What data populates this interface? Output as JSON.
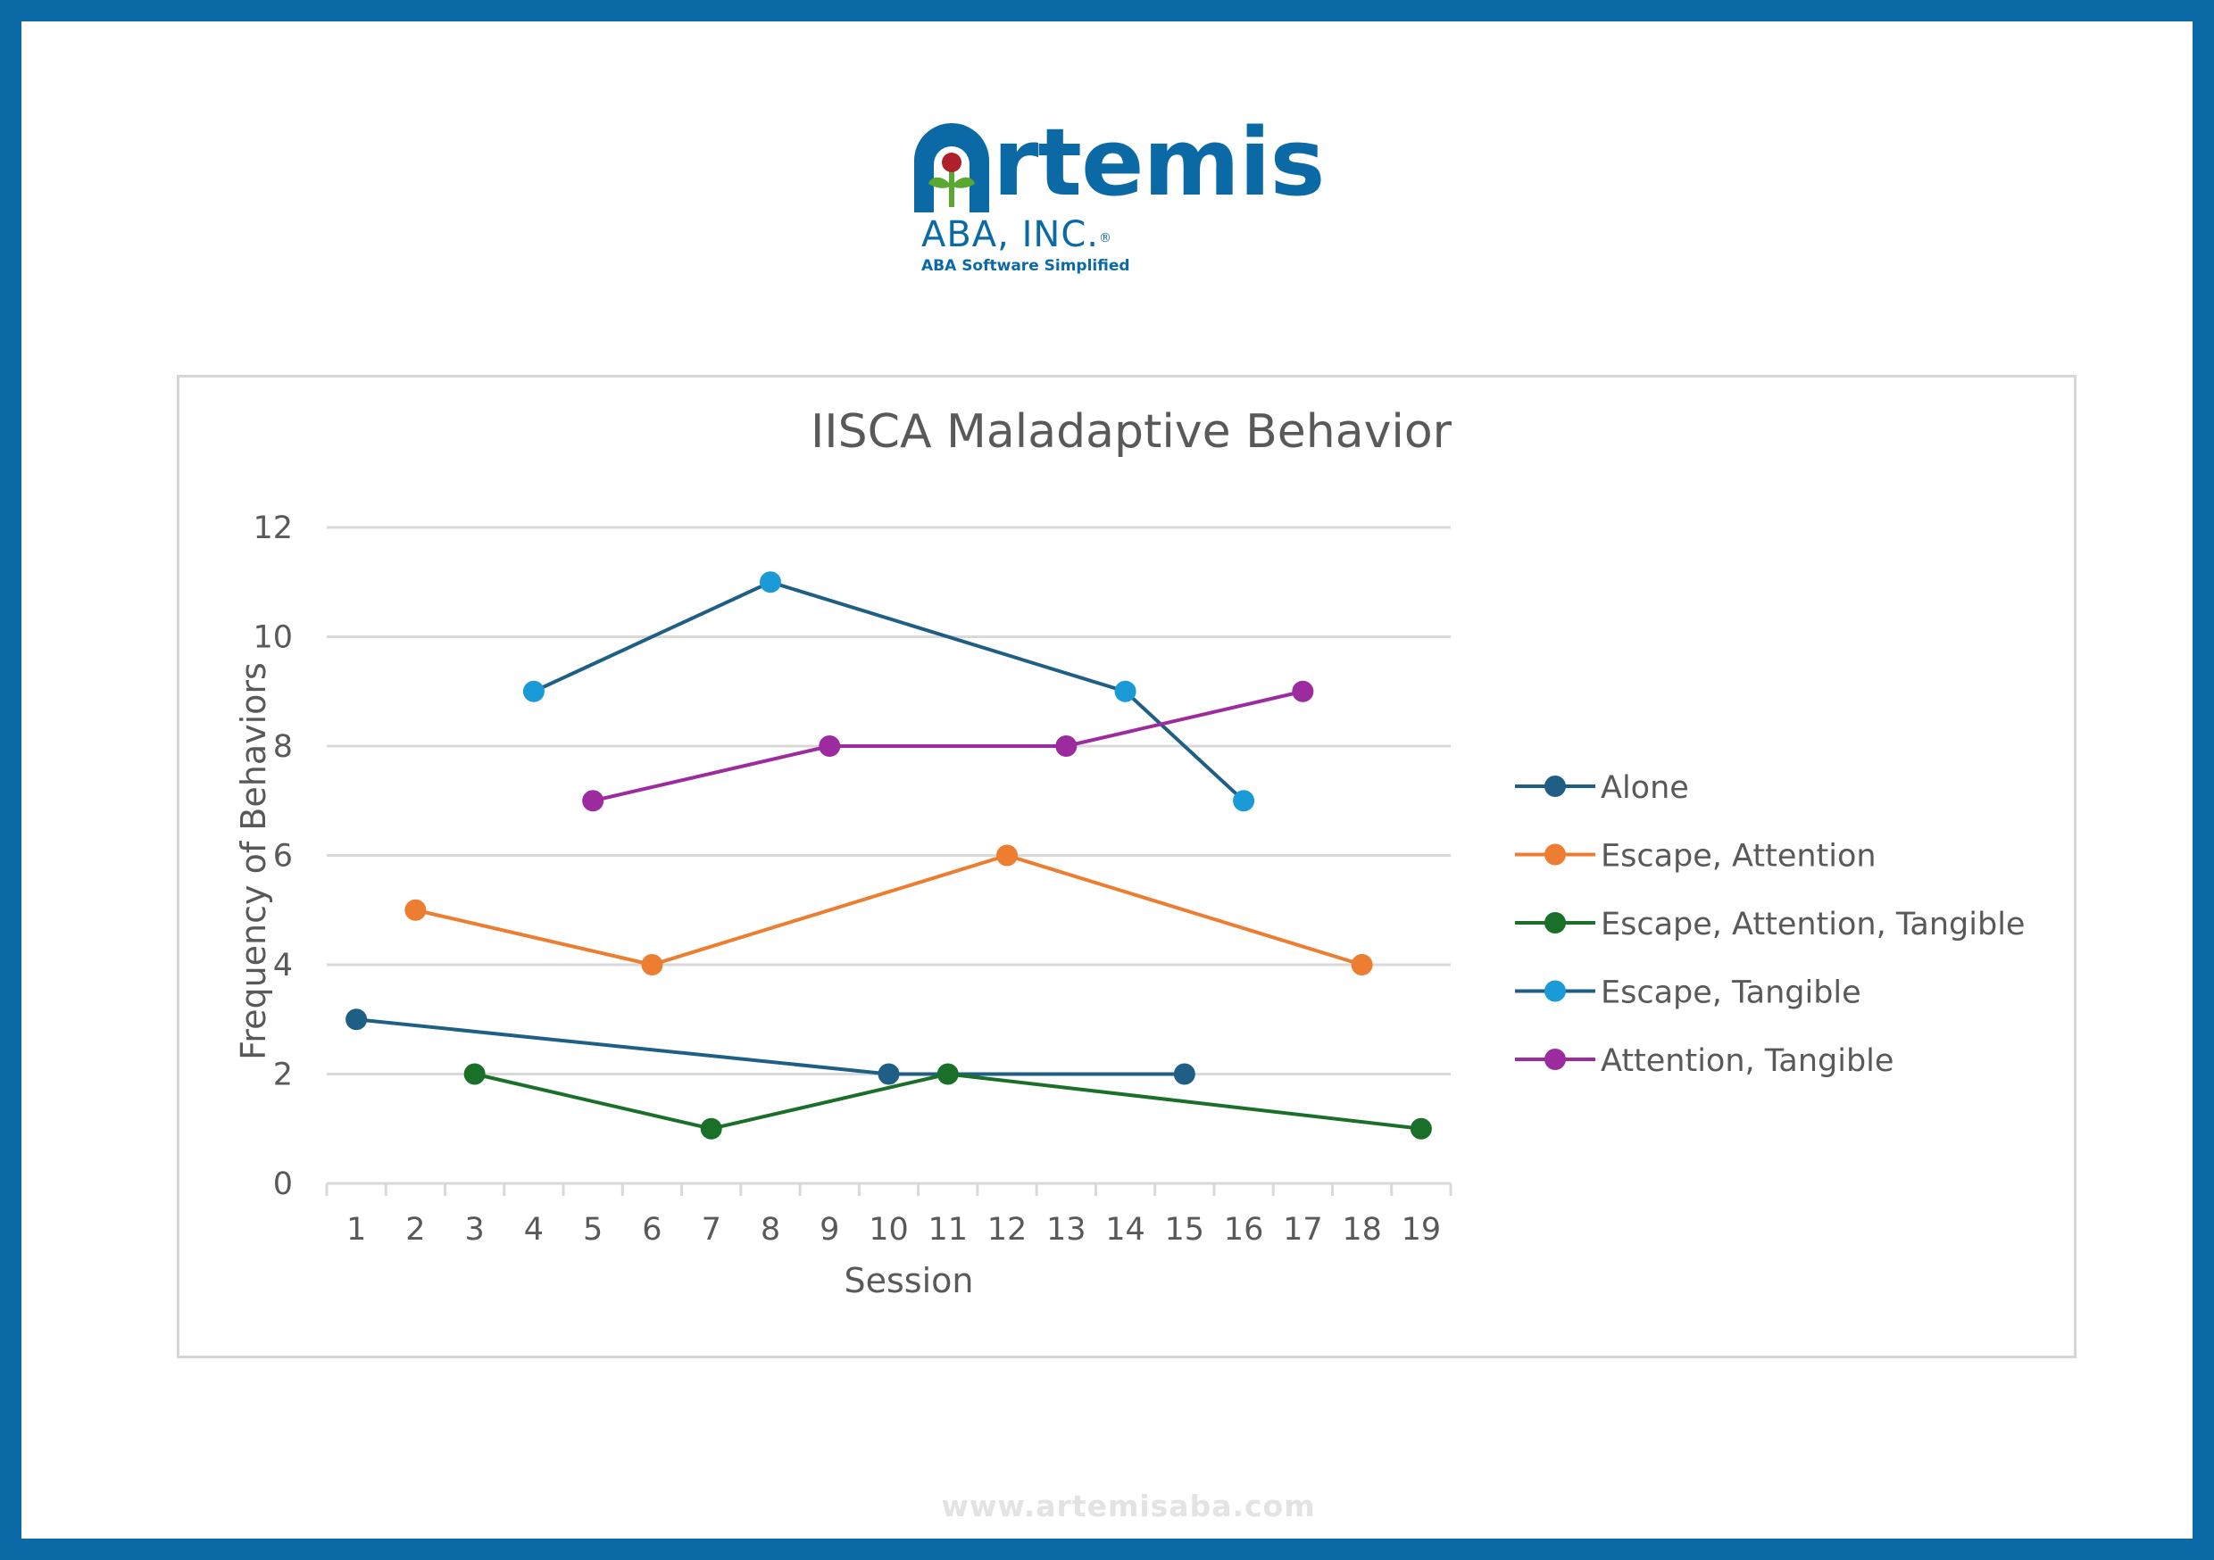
{
  "logo": {
    "wordmark": "Artemis",
    "wordmark_first": "A",
    "wordmark_rest": "rtemis",
    "subtitle": "ABA, INC.",
    "registered_mark": "®",
    "tagline": "ABA Software Simplified",
    "colors": {
      "brand": "#0b6aa6",
      "leaf": "#5aa832",
      "flower": "#b0202a"
    }
  },
  "footer": {
    "url": "www.artemisaba.com"
  },
  "chart_data": {
    "type": "line",
    "title": "IISCA Maladaptive Behavior",
    "xlabel": "Session",
    "ylabel": "Frequency of Behaviors",
    "categories": [
      "1",
      "2",
      "3",
      "4",
      "5",
      "6",
      "7",
      "8",
      "9",
      "10",
      "11",
      "12",
      "13",
      "14",
      "15",
      "16",
      "17",
      "18",
      "19"
    ],
    "ylim": [
      0,
      12
    ],
    "yticks": [
      "0",
      "2",
      "4",
      "6",
      "8",
      "10",
      "12"
    ],
    "grid": true,
    "legend_position": "right",
    "series": [
      {
        "name": "Alone",
        "color": "#1f5f85",
        "points": [
          {
            "x": "1",
            "y": 3
          },
          {
            "x": "10",
            "y": 2
          },
          {
            "x": "15",
            "y": 2
          }
        ]
      },
      {
        "name": "Escape, Attention",
        "color": "#ed7d31",
        "points": [
          {
            "x": "2",
            "y": 5
          },
          {
            "x": "6",
            "y": 4
          },
          {
            "x": "12",
            "y": 6
          },
          {
            "x": "18",
            "y": 4
          }
        ]
      },
      {
        "name": "Escape, Attention, Tangible",
        "color": "#1a7028",
        "points": [
          {
            "x": "3",
            "y": 2
          },
          {
            "x": "7",
            "y": 1
          },
          {
            "x": "11",
            "y": 2
          },
          {
            "x": "19",
            "y": 1
          }
        ]
      },
      {
        "name": "Escape, Tangible",
        "color": "#1a9ad6",
        "line_color": "#1f5f85",
        "points": [
          {
            "x": "4",
            "y": 9
          },
          {
            "x": "8",
            "y": 11
          },
          {
            "x": "14",
            "y": 9
          },
          {
            "x": "16",
            "y": 7
          }
        ]
      },
      {
        "name": "Attention, Tangible",
        "color": "#9b2b9e",
        "points": [
          {
            "x": "5",
            "y": 7
          },
          {
            "x": "9",
            "y": 8
          },
          {
            "x": "13",
            "y": 8
          },
          {
            "x": "17",
            "y": 9
          }
        ]
      }
    ]
  }
}
